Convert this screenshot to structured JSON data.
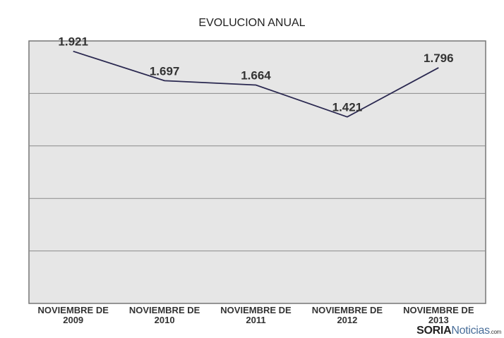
{
  "chart_data": {
    "type": "line",
    "title": "EVOLUCION ANUAL",
    "categories": [
      "NOVIEMBRE DE 2009",
      "NOVIEMBRE DE 2010",
      "NOVIEMBRE DE 2011",
      "NOVIEMBRE DE 2012",
      "NOVIEMBRE DE 2013"
    ],
    "category_lines": [
      [
        "NOVIEMBRE DE",
        "2009"
      ],
      [
        "NOVIEMBRE DE",
        "2010"
      ],
      [
        "NOVIEMBRE DE",
        "2011"
      ],
      [
        "NOVIEMBRE DE",
        "2012"
      ],
      [
        "NOVIEMBRE DE",
        "2013"
      ]
    ],
    "values": [
      1921,
      1697,
      1664,
      1421,
      1796
    ],
    "data_labels": [
      "1.921",
      "1.697",
      "1.664",
      "1.421",
      "1.796"
    ],
    "ylim": [
      0,
      2000
    ],
    "y_grid_step": 400,
    "grid": true,
    "xlabel": "",
    "ylabel": "",
    "colors": {
      "line": "#2a2850",
      "plot_bg": "#e6e6e6",
      "grid": "#8a8a8a"
    }
  },
  "watermark": {
    "brand": "SORIA",
    "rest": "Noticias",
    "suffix": ".com"
  }
}
